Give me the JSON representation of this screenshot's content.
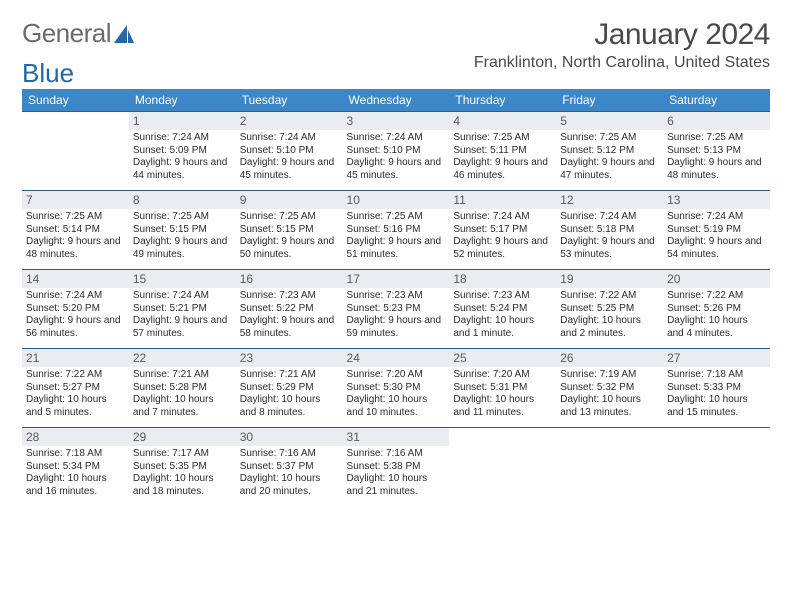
{
  "logo": {
    "text1": "General",
    "text2": "Blue"
  },
  "title": "January 2024",
  "location": "Franklinton, North Carolina, United States",
  "colors": {
    "header_bg": "#3b87c8",
    "header_text": "#ffffff",
    "border": "#2b5d8a",
    "daynum_bg": "#e9edf1",
    "text": "#2b2b2b",
    "logo_gray": "#6b6b6b",
    "logo_blue": "#2566a6"
  },
  "day_names": [
    "Sunday",
    "Monday",
    "Tuesday",
    "Wednesday",
    "Thursday",
    "Friday",
    "Saturday"
  ],
  "weeks": [
    [
      null,
      {
        "n": "1",
        "sr": "7:24 AM",
        "ss": "5:09 PM",
        "dl": "9 hours and 44 minutes."
      },
      {
        "n": "2",
        "sr": "7:24 AM",
        "ss": "5:10 PM",
        "dl": "9 hours and 45 minutes."
      },
      {
        "n": "3",
        "sr": "7:24 AM",
        "ss": "5:10 PM",
        "dl": "9 hours and 45 minutes."
      },
      {
        "n": "4",
        "sr": "7:25 AM",
        "ss": "5:11 PM",
        "dl": "9 hours and 46 minutes."
      },
      {
        "n": "5",
        "sr": "7:25 AM",
        "ss": "5:12 PM",
        "dl": "9 hours and 47 minutes."
      },
      {
        "n": "6",
        "sr": "7:25 AM",
        "ss": "5:13 PM",
        "dl": "9 hours and 48 minutes."
      }
    ],
    [
      {
        "n": "7",
        "sr": "7:25 AM",
        "ss": "5:14 PM",
        "dl": "9 hours and 48 minutes."
      },
      {
        "n": "8",
        "sr": "7:25 AM",
        "ss": "5:15 PM",
        "dl": "9 hours and 49 minutes."
      },
      {
        "n": "9",
        "sr": "7:25 AM",
        "ss": "5:15 PM",
        "dl": "9 hours and 50 minutes."
      },
      {
        "n": "10",
        "sr": "7:25 AM",
        "ss": "5:16 PM",
        "dl": "9 hours and 51 minutes."
      },
      {
        "n": "11",
        "sr": "7:24 AM",
        "ss": "5:17 PM",
        "dl": "9 hours and 52 minutes."
      },
      {
        "n": "12",
        "sr": "7:24 AM",
        "ss": "5:18 PM",
        "dl": "9 hours and 53 minutes."
      },
      {
        "n": "13",
        "sr": "7:24 AM",
        "ss": "5:19 PM",
        "dl": "9 hours and 54 minutes."
      }
    ],
    [
      {
        "n": "14",
        "sr": "7:24 AM",
        "ss": "5:20 PM",
        "dl": "9 hours and 56 minutes."
      },
      {
        "n": "15",
        "sr": "7:24 AM",
        "ss": "5:21 PM",
        "dl": "9 hours and 57 minutes."
      },
      {
        "n": "16",
        "sr": "7:23 AM",
        "ss": "5:22 PM",
        "dl": "9 hours and 58 minutes."
      },
      {
        "n": "17",
        "sr": "7:23 AM",
        "ss": "5:23 PM",
        "dl": "9 hours and 59 minutes."
      },
      {
        "n": "18",
        "sr": "7:23 AM",
        "ss": "5:24 PM",
        "dl": "10 hours and 1 minute."
      },
      {
        "n": "19",
        "sr": "7:22 AM",
        "ss": "5:25 PM",
        "dl": "10 hours and 2 minutes."
      },
      {
        "n": "20",
        "sr": "7:22 AM",
        "ss": "5:26 PM",
        "dl": "10 hours and 4 minutes."
      }
    ],
    [
      {
        "n": "21",
        "sr": "7:22 AM",
        "ss": "5:27 PM",
        "dl": "10 hours and 5 minutes."
      },
      {
        "n": "22",
        "sr": "7:21 AM",
        "ss": "5:28 PM",
        "dl": "10 hours and 7 minutes."
      },
      {
        "n": "23",
        "sr": "7:21 AM",
        "ss": "5:29 PM",
        "dl": "10 hours and 8 minutes."
      },
      {
        "n": "24",
        "sr": "7:20 AM",
        "ss": "5:30 PM",
        "dl": "10 hours and 10 minutes."
      },
      {
        "n": "25",
        "sr": "7:20 AM",
        "ss": "5:31 PM",
        "dl": "10 hours and 11 minutes."
      },
      {
        "n": "26",
        "sr": "7:19 AM",
        "ss": "5:32 PM",
        "dl": "10 hours and 13 minutes."
      },
      {
        "n": "27",
        "sr": "7:18 AM",
        "ss": "5:33 PM",
        "dl": "10 hours and 15 minutes."
      }
    ],
    [
      {
        "n": "28",
        "sr": "7:18 AM",
        "ss": "5:34 PM",
        "dl": "10 hours and 16 minutes."
      },
      {
        "n": "29",
        "sr": "7:17 AM",
        "ss": "5:35 PM",
        "dl": "10 hours and 18 minutes."
      },
      {
        "n": "30",
        "sr": "7:16 AM",
        "ss": "5:37 PM",
        "dl": "10 hours and 20 minutes."
      },
      {
        "n": "31",
        "sr": "7:16 AM",
        "ss": "5:38 PM",
        "dl": "10 hours and 21 minutes."
      },
      null,
      null,
      null
    ]
  ],
  "labels": {
    "sunrise": "Sunrise:",
    "sunset": "Sunset:",
    "daylight": "Daylight:"
  }
}
